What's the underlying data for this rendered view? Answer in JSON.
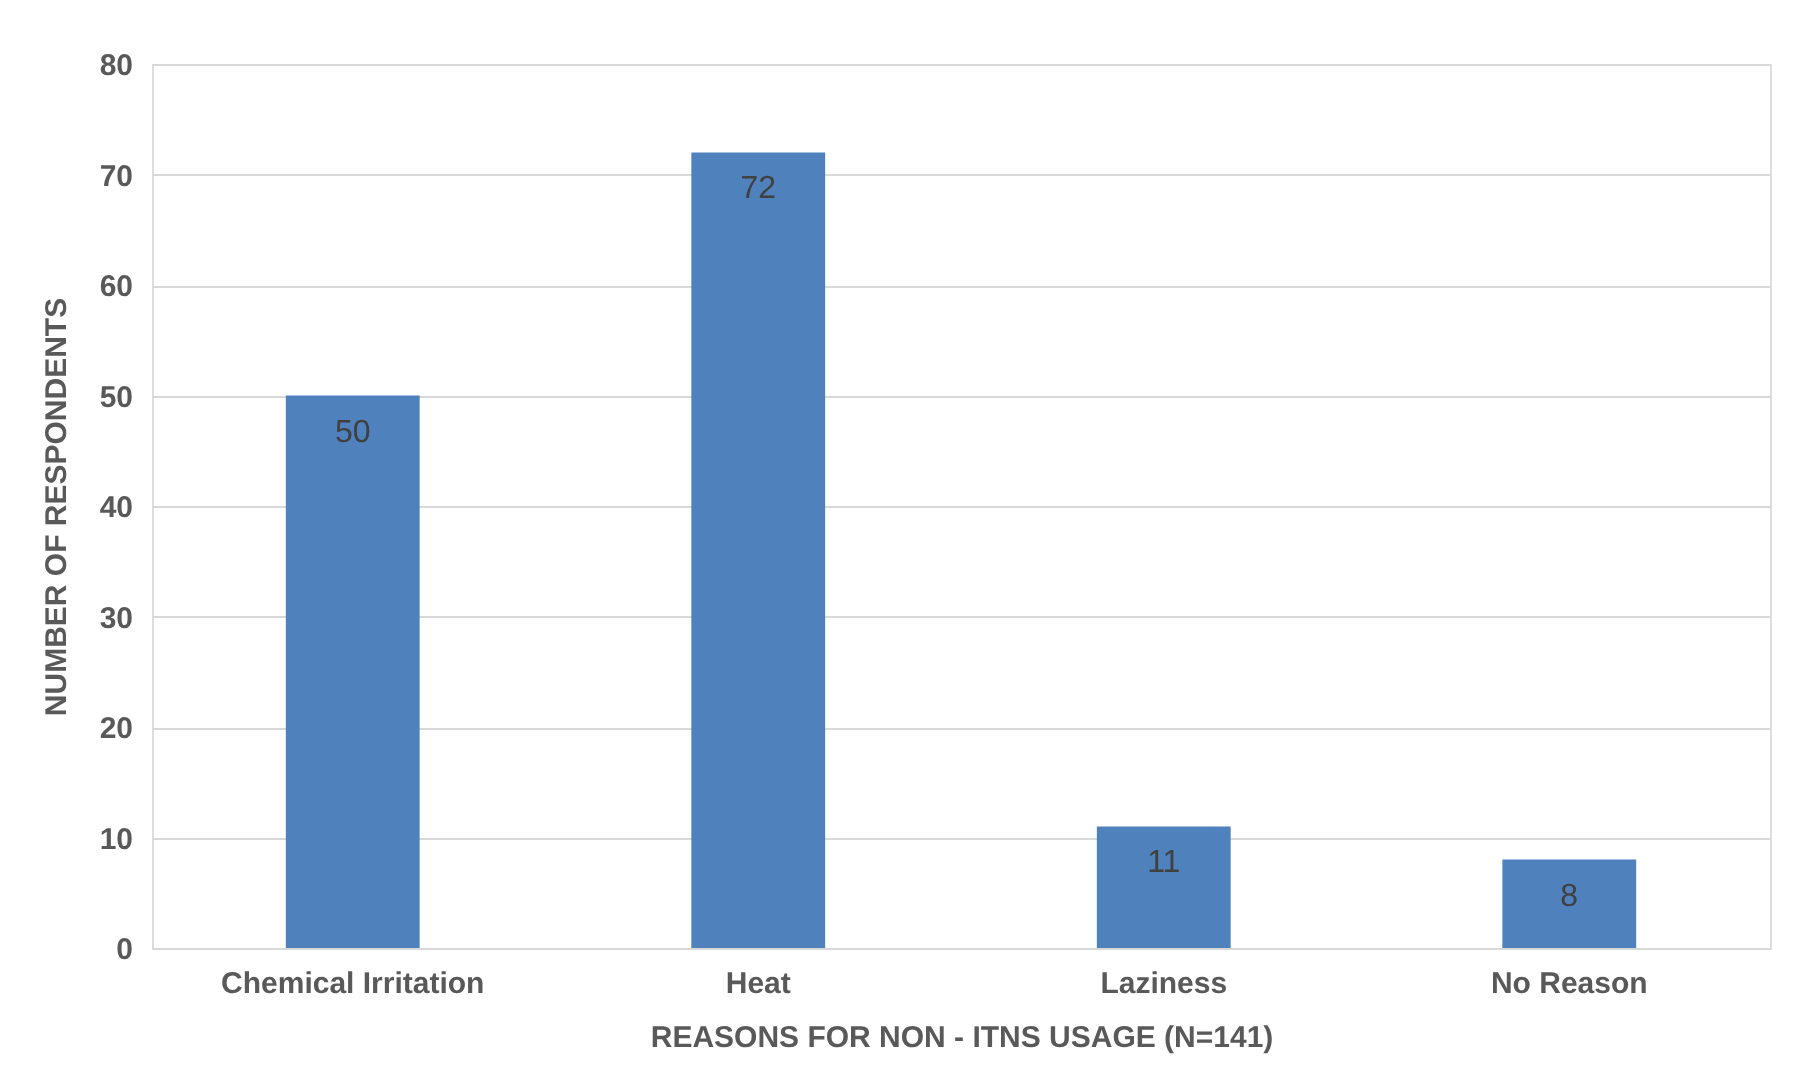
{
  "chart_data": {
    "type": "bar",
    "xlabel": "REASONS FOR NON - ITNS USAGE (N=141)",
    "ylabel": "NUMBER OF RESPONDENTS",
    "categories": [
      "Chemical Irritation",
      "Heat",
      "Laziness",
      "No Reason"
    ],
    "values": [
      50,
      72,
      11,
      8
    ],
    "color": "#4f81bd",
    "data_labels": true,
    "ylim": [
      0,
      80
    ],
    "yticks": [
      0,
      10,
      20,
      30,
      40,
      50,
      60,
      70,
      80
    ],
    "grid": true
  }
}
